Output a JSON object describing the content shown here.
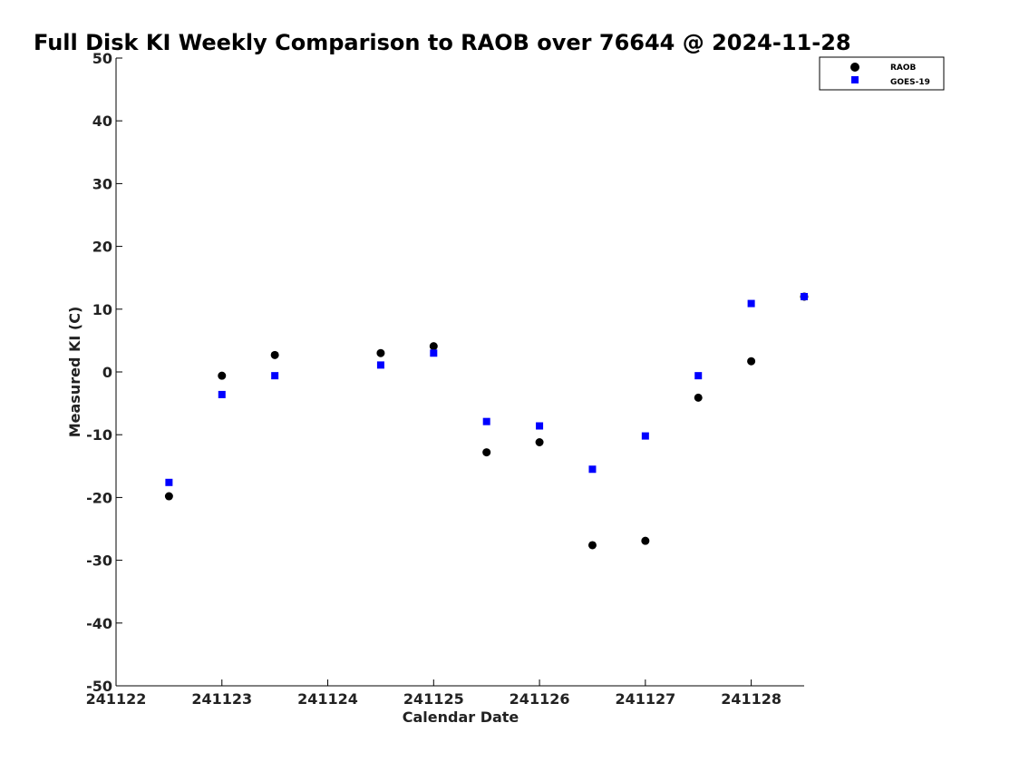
{
  "chart_data": {
    "type": "scatter",
    "title": "Full Disk KI Weekly Comparison to RAOB over 76644 @ 2024-11-28",
    "xlabel": "Calendar Date",
    "ylabel": "Measured KI (C)",
    "xlim": [
      241122,
      241128.5
    ],
    "ylim": [
      -50,
      50
    ],
    "x_ticks": [
      241122,
      241123,
      241124,
      241125,
      241126,
      241127,
      241128
    ],
    "x_tick_labels": [
      "241122",
      "241123",
      "241124",
      "241125",
      "241126",
      "241127",
      "241128"
    ],
    "y_ticks": [
      50,
      40,
      30,
      20,
      10,
      0,
      -10,
      -20,
      -30,
      -40,
      -50
    ],
    "y_tick_labels": [
      "50",
      "40",
      "30",
      "20",
      "10",
      "0",
      "-10",
      "-20",
      "-30",
      "-40",
      "-50"
    ],
    "grid": false,
    "legend_position": "top-right",
    "series": [
      {
        "name": "RAOB",
        "marker": "circle",
        "color": "#000000",
        "x": [
          241122.5,
          241123,
          241123.5,
          241124.5,
          241125,
          241125.5,
          241126,
          241126.5,
          241127,
          241127.5,
          241128,
          241128.5
        ],
        "y": [
          -19.8,
          -0.6,
          2.7,
          3.0,
          4.1,
          -12.8,
          -11.2,
          -27.6,
          -26.9,
          -4.1,
          1.7,
          12.0
        ]
      },
      {
        "name": "GOES-19",
        "marker": "square",
        "color": "#0000ff",
        "x": [
          241122.5,
          241123,
          241123.5,
          241124.5,
          241125,
          241125.5,
          241126,
          241126.5,
          241127,
          241127.5,
          241128,
          241128.5
        ],
        "y": [
          -17.6,
          -3.6,
          -0.6,
          1.1,
          3.0,
          -7.9,
          -8.6,
          -15.5,
          -10.2,
          -0.6,
          10.9,
          12.0
        ]
      }
    ]
  }
}
